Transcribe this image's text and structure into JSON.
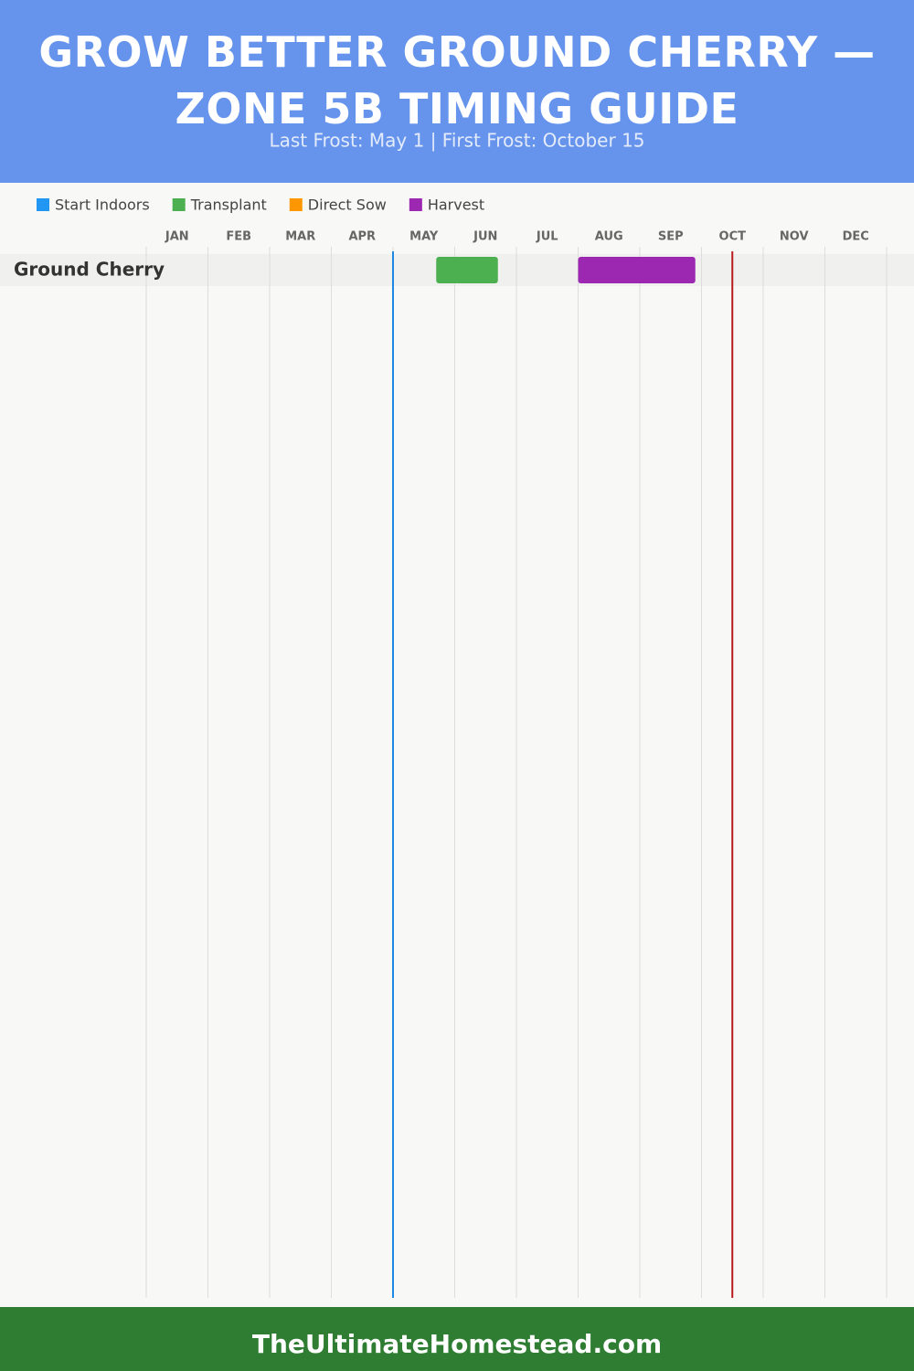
{
  "chart_data": {
    "type": "gantt",
    "title": "GROW BETTER GROUND CHERRY — ZONE 5B TIMING GUIDE",
    "subtitle": "Last Frost: May 1 | First Frost: October 15",
    "footer": "TheUltimateHomestead.com",
    "months": [
      "JAN",
      "FEB",
      "MAR",
      "APR",
      "MAY",
      "JUN",
      "JUL",
      "AUG",
      "SEP",
      "OCT",
      "NOV",
      "DEC"
    ],
    "xlim": [
      0,
      12
    ],
    "grid": true,
    "categories": [
      "Ground Cherry"
    ],
    "series": [
      {
        "name": "Start Indoors",
        "color": "#2196f3",
        "values": [
          null
        ]
      },
      {
        "name": "Transplant",
        "color": "#4caf50",
        "values": [
          [
            4.7,
            5.7
          ]
        ]
      },
      {
        "name": "Direct Sow",
        "color": "#ff9800",
        "values": [
          null
        ]
      },
      {
        "name": "Harvest",
        "color": "#9c27b0",
        "values": [
          [
            7.0,
            8.9
          ]
        ]
      }
    ],
    "frost_lines": [
      {
        "value": 4,
        "color": "#1e88e5"
      },
      {
        "value": 9.5,
        "color": "#b71c1c"
      }
    ]
  }
}
